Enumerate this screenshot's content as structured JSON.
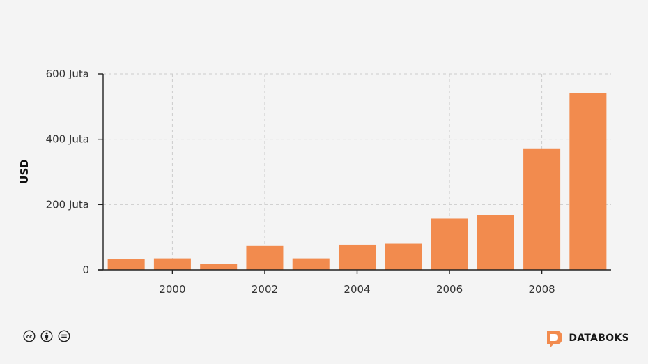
{
  "chart_data": {
    "type": "bar",
    "title": "",
    "xlabel": "",
    "ylabel": "USD",
    "x": [
      1999,
      2000,
      2001,
      2002,
      2003,
      2004,
      2005,
      2006,
      2007,
      2008,
      2009
    ],
    "values": [
      32000000,
      35000000,
      19000000,
      73000000,
      35000000,
      77000000,
      80000000,
      157000000,
      167000000,
      372000000,
      541000000
    ],
    "xlim": [
      1998.5,
      2009.5
    ],
    "ylim": [
      0,
      600000000
    ],
    "yticks": [
      {
        "value": 0,
        "label": "0"
      },
      {
        "value": 200000000,
        "label": "200 Juta"
      },
      {
        "value": 400000000,
        "label": "400 Juta"
      },
      {
        "value": 600000000,
        "label": "600 Juta"
      }
    ],
    "xticks": [
      {
        "value": 2000,
        "label": "2000"
      },
      {
        "value": 2002,
        "label": "2002"
      },
      {
        "value": 2004,
        "label": "2004"
      },
      {
        "value": 2006,
        "label": "2006"
      },
      {
        "value": 2008,
        "label": "2008"
      }
    ],
    "grid": true,
    "bar_color": "#f28b4e"
  },
  "footer": {
    "license_icons": [
      "creative-commons-icon",
      "attribution-icon",
      "no-derivatives-icon"
    ],
    "brand_name": "DATABOKS",
    "brand_color": "#f28b4e"
  }
}
